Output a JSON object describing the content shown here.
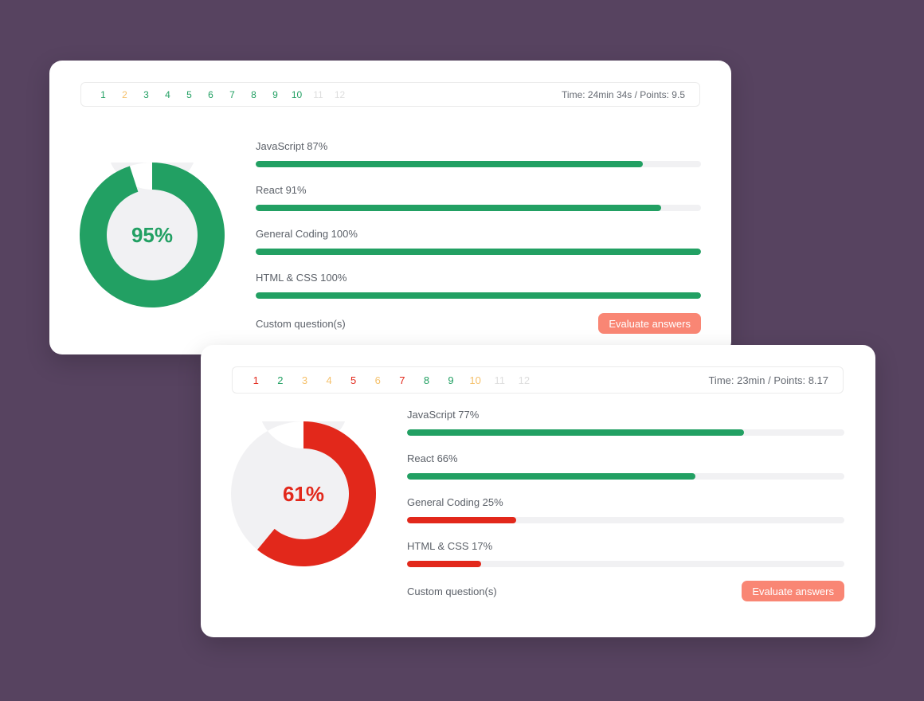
{
  "cards": [
    {
      "questions": [
        {
          "n": "1",
          "status": "green"
        },
        {
          "n": "2",
          "status": "yellow"
        },
        {
          "n": "3",
          "status": "green"
        },
        {
          "n": "4",
          "status": "green"
        },
        {
          "n": "5",
          "status": "green"
        },
        {
          "n": "6",
          "status": "green"
        },
        {
          "n": "7",
          "status": "green"
        },
        {
          "n": "8",
          "status": "green"
        },
        {
          "n": "9",
          "status": "green"
        },
        {
          "n": "10",
          "status": "green"
        },
        {
          "n": "11",
          "status": "disabled"
        },
        {
          "n": "12",
          "status": "disabled"
        }
      ],
      "time_points": "Time: 24min 34s / Points: 9.5",
      "score_label": "95%",
      "score": 95,
      "score_color": "#22a063",
      "skills": [
        {
          "label": "JavaScript 87%",
          "value": 87,
          "color": "green"
        },
        {
          "label": "React 91%",
          "value": 91,
          "color": "green"
        },
        {
          "label": "General Coding 100%",
          "value": 100,
          "color": "green"
        },
        {
          "label": "HTML & CSS 100%",
          "value": 100,
          "color": "green"
        }
      ],
      "custom_label": "Custom question(s)",
      "evaluate_label": "Evaluate answers"
    },
    {
      "questions": [
        {
          "n": "1",
          "status": "red"
        },
        {
          "n": "2",
          "status": "green"
        },
        {
          "n": "3",
          "status": "yellow"
        },
        {
          "n": "4",
          "status": "yellow"
        },
        {
          "n": "5",
          "status": "red"
        },
        {
          "n": "6",
          "status": "yellow"
        },
        {
          "n": "7",
          "status": "red"
        },
        {
          "n": "8",
          "status": "green"
        },
        {
          "n": "9",
          "status": "green"
        },
        {
          "n": "10",
          "status": "yellow"
        },
        {
          "n": "11",
          "status": "disabled"
        },
        {
          "n": "12",
          "status": "disabled"
        }
      ],
      "time_points": "Time: 23min / Points: 8.17",
      "score_label": "61%",
      "score": 61,
      "score_color": "#e2281b",
      "skills": [
        {
          "label": "JavaScript 77%",
          "value": 77,
          "color": "green"
        },
        {
          "label": "React 66%",
          "value": 66,
          "color": "green"
        },
        {
          "label": "General Coding 25%",
          "value": 25,
          "color": "red"
        },
        {
          "label": "HTML & CSS 17%",
          "value": 17,
          "color": "red"
        }
      ],
      "custom_label": "Custom question(s)",
      "evaluate_label": "Evaluate answers"
    }
  ],
  "colors": {
    "background": "#574360",
    "green": "#22a063",
    "red": "#e2281b",
    "yellow": "#f5c06a",
    "disabled": "#dedede",
    "button": "#f98674",
    "track": "#f1f1f3"
  }
}
